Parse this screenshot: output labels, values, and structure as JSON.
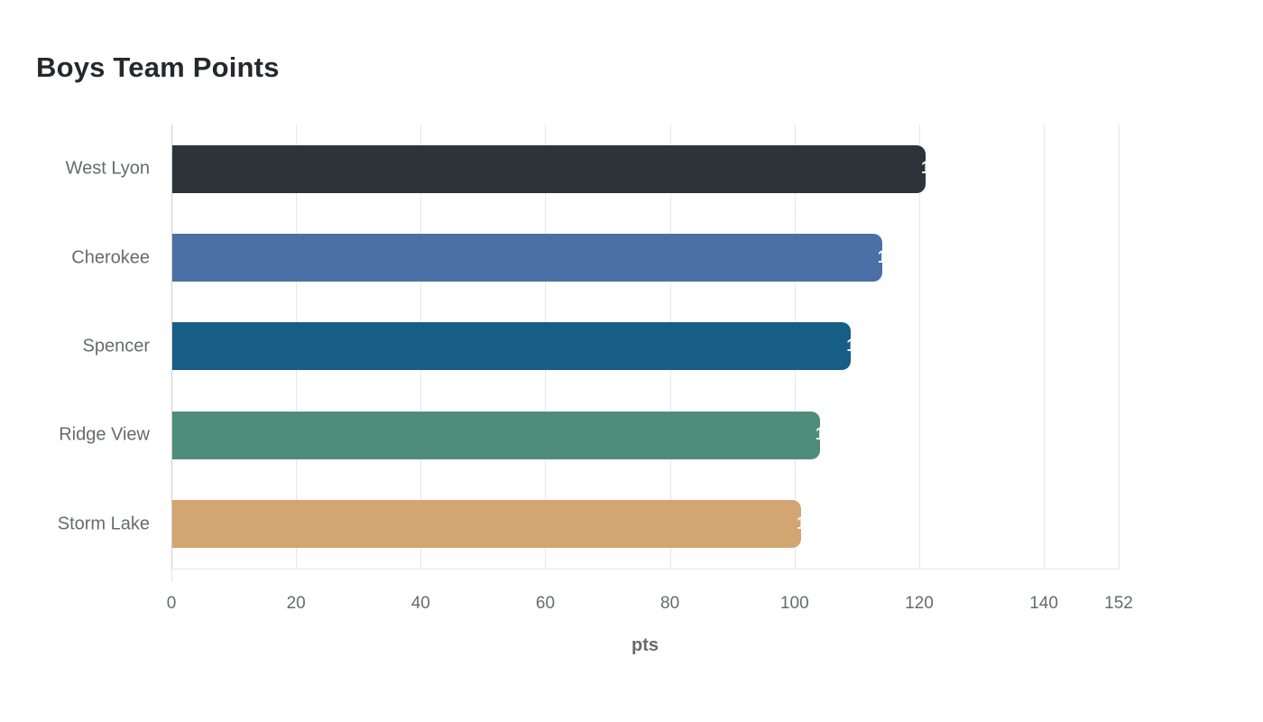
{
  "chart_data": {
    "type": "bar",
    "orientation": "horizontal",
    "title": "Boys Team Points",
    "xlabel": "pts",
    "categories": [
      "West Lyon",
      "Cherokee",
      "Spencer",
      "Ridge View",
      "Storm Lake"
    ],
    "values": [
      121,
      114,
      109,
      104,
      101
    ],
    "bar_colors": [
      "#2d3439",
      "#4b70a6",
      "#175e87",
      "#4f8d7b",
      "#d3a572"
    ],
    "value_label_color": "#ffffff",
    "xlim": [
      0,
      152
    ],
    "xticks": [
      0,
      20,
      40,
      60,
      80,
      100,
      120,
      140,
      152
    ],
    "grid": true,
    "legend": false
  }
}
